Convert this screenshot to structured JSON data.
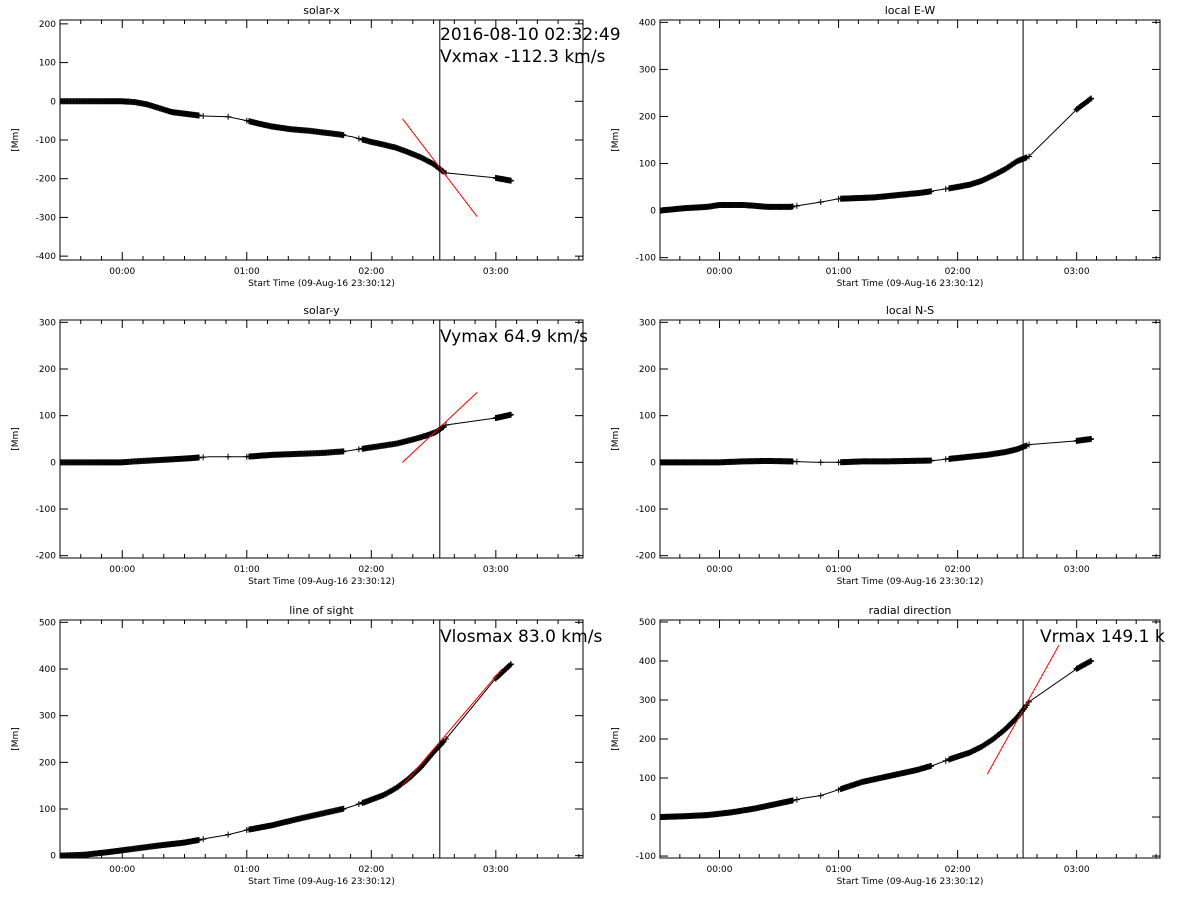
{
  "header": {
    "timestamp": "2016-08-10 02:32:49"
  },
  "chart_data": [
    {
      "type": "scatter",
      "title": "solar-x",
      "xlabel": "Start Time (09-Aug-16 23:30:12)",
      "ylabel": "[Mm]",
      "xlim": [
        -0.5,
        3.7
      ],
      "ylim": [
        -410,
        210
      ],
      "yticks": [
        200,
        100,
        0,
        -100,
        -200,
        -300,
        -400
      ],
      "yticklabels": [
        "200",
        "100",
        "0",
        "-100",
        "-200",
        "-300",
        "-400"
      ],
      "xticks": [
        0,
        1,
        2,
        3
      ],
      "xticklabels": [
        "00:00",
        "01:00",
        "02:00",
        "03:00"
      ],
      "annotation": "Vxmax -112.3 km/s",
      "event_time": 2.55,
      "trend": [
        [
          -0.5,
          0
        ],
        [
          -0.4,
          0
        ],
        [
          -0.2,
          0
        ],
        [
          0,
          0
        ],
        [
          0.1,
          -2
        ],
        [
          0.2,
          -8
        ],
        [
          0.3,
          -18
        ],
        [
          0.4,
          -28
        ],
        [
          0.5,
          -32
        ],
        [
          0.65,
          -38
        ],
        [
          0.85,
          -40
        ],
        [
          1.0,
          -50
        ],
        [
          1.1,
          -58
        ],
        [
          1.2,
          -65
        ],
        [
          1.35,
          -72
        ],
        [
          1.5,
          -76
        ],
        [
          1.6,
          -80
        ],
        [
          1.75,
          -86
        ],
        [
          1.85,
          -92
        ],
        [
          2.0,
          -105
        ],
        [
          2.1,
          -112
        ],
        [
          2.2,
          -120
        ],
        [
          2.3,
          -132
        ],
        [
          2.4,
          -145
        ],
        [
          2.5,
          -162
        ],
        [
          2.57,
          -180
        ],
        [
          2.6,
          -185
        ],
        [
          3.0,
          -198
        ],
        [
          3.12,
          -205
        ]
      ],
      "fit": [
        [
          2.25,
          -45
        ],
        [
          2.85,
          -298
        ]
      ],
      "line_color": "#000000",
      "fit_color": "#ff0000"
    },
    {
      "type": "scatter",
      "title": "local E-W",
      "xlabel": "Start Time (09-Aug-16 23:30:12)",
      "ylabel": "[Mm]",
      "xlim": [
        -0.5,
        3.7
      ],
      "ylim": [
        -105,
        405
      ],
      "yticks": [
        400,
        300,
        200,
        100,
        0,
        -100
      ],
      "yticklabels": [
        "400",
        "300",
        "200",
        "100",
        "0",
        "-100"
      ],
      "xticks": [
        0,
        1,
        2,
        3
      ],
      "xticklabels": [
        "00:00",
        "01:00",
        "02:00",
        "03:00"
      ],
      "annotation": "",
      "event_time": 2.55,
      "trend": [
        [
          -0.5,
          0
        ],
        [
          -0.3,
          5
        ],
        [
          -0.1,
          8
        ],
        [
          0.0,
          12
        ],
        [
          0.2,
          12
        ],
        [
          0.3,
          10
        ],
        [
          0.4,
          8
        ],
        [
          0.6,
          8
        ],
        [
          0.7,
          12
        ],
        [
          0.85,
          18
        ],
        [
          1.0,
          25
        ],
        [
          1.1,
          26
        ],
        [
          1.3,
          28
        ],
        [
          1.5,
          33
        ],
        [
          1.7,
          38
        ],
        [
          1.8,
          42
        ],
        [
          1.95,
          48
        ],
        [
          2.1,
          55
        ],
        [
          2.2,
          63
        ],
        [
          2.3,
          75
        ],
        [
          2.4,
          88
        ],
        [
          2.5,
          105
        ],
        [
          2.6,
          115
        ],
        [
          3.0,
          215
        ],
        [
          3.12,
          238
        ]
      ],
      "fit": null,
      "line_color": "#000000",
      "fit_color": "#ff0000"
    },
    {
      "type": "scatter",
      "title": "solar-y",
      "xlabel": "Start Time (09-Aug-16 23:30:12)",
      "ylabel": "[Mm]",
      "xlim": [
        -0.5,
        3.7
      ],
      "ylim": [
        -205,
        305
      ],
      "yticks": [
        300,
        200,
        100,
        0,
        -100,
        -200
      ],
      "yticklabels": [
        "300",
        "200",
        "100",
        "0",
        "-100",
        "-200"
      ],
      "xticks": [
        0,
        1,
        2,
        3
      ],
      "xticklabels": [
        "00:00",
        "01:00",
        "02:00",
        "03:00"
      ],
      "annotation": "Vymax 64.9 km/s",
      "event_time": 2.55,
      "trend": [
        [
          -0.5,
          0
        ],
        [
          -0.2,
          0
        ],
        [
          0.0,
          0
        ],
        [
          0.1,
          2
        ],
        [
          0.3,
          5
        ],
        [
          0.5,
          8
        ],
        [
          0.7,
          12
        ],
        [
          1.0,
          12
        ],
        [
          1.2,
          16
        ],
        [
          1.4,
          18
        ],
        [
          1.6,
          20
        ],
        [
          1.8,
          24
        ],
        [
          1.95,
          30
        ],
        [
          2.1,
          36
        ],
        [
          2.2,
          40
        ],
        [
          2.35,
          50
        ],
        [
          2.45,
          58
        ],
        [
          2.52,
          65
        ],
        [
          2.6,
          80
        ],
        [
          3.0,
          95
        ],
        [
          3.12,
          102
        ]
      ],
      "fit": [
        [
          2.25,
          0
        ],
        [
          2.85,
          150
        ]
      ],
      "line_color": "#000000",
      "fit_color": "#ff0000"
    },
    {
      "type": "scatter",
      "title": "local N-S",
      "xlabel": "Start Time (09-Aug-16 23:30:12)",
      "ylabel": "[Mm]",
      "xlim": [
        -0.5,
        3.7
      ],
      "ylim": [
        -205,
        305
      ],
      "yticks": [
        300,
        200,
        100,
        0,
        -100,
        -200
      ],
      "yticklabels": [
        "300",
        "200",
        "100",
        "0",
        "-100",
        "-200"
      ],
      "xticks": [
        0,
        1,
        2,
        3
      ],
      "xticklabels": [
        "00:00",
        "01:00",
        "02:00",
        "03:00"
      ],
      "annotation": "",
      "event_time": 2.55,
      "trend": [
        [
          -0.5,
          0
        ],
        [
          -0.2,
          0
        ],
        [
          0.0,
          0
        ],
        [
          0.2,
          2
        ],
        [
          0.4,
          3
        ],
        [
          0.6,
          2
        ],
        [
          0.8,
          0
        ],
        [
          1.0,
          0
        ],
        [
          1.2,
          2
        ],
        [
          1.4,
          2
        ],
        [
          1.6,
          3
        ],
        [
          1.8,
          4
        ],
        [
          1.95,
          8
        ],
        [
          2.1,
          12
        ],
        [
          2.25,
          16
        ],
        [
          2.4,
          22
        ],
        [
          2.5,
          28
        ],
        [
          2.6,
          38
        ],
        [
          3.0,
          46
        ],
        [
          3.12,
          50
        ]
      ],
      "fit": null,
      "line_color": "#000000",
      "fit_color": "#ff0000"
    },
    {
      "type": "scatter",
      "title": "line of sight",
      "xlabel": "Start Time (09-Aug-16 23:30:12)",
      "ylabel": "[Mm]",
      "xlim": [
        -0.5,
        3.7
      ],
      "ylim": [
        -5,
        505
      ],
      "yticks": [
        500,
        400,
        300,
        200,
        100,
        0
      ],
      "yticklabels": [
        "500",
        "400",
        "300",
        "200",
        "100",
        "0"
      ],
      "xticks": [
        0,
        1,
        2,
        3
      ],
      "xticklabels": [
        "00:00",
        "01:00",
        "02:00",
        "03:00"
      ],
      "annotation": "Vlosmax 83.0 km/s",
      "event_time": 2.55,
      "trend": [
        [
          -0.5,
          0
        ],
        [
          -0.3,
          2
        ],
        [
          -0.1,
          8
        ],
        [
          0.1,
          15
        ],
        [
          0.3,
          22
        ],
        [
          0.5,
          28
        ],
        [
          0.7,
          38
        ],
        [
          0.85,
          45
        ],
        [
          1.0,
          55
        ],
        [
          1.2,
          65
        ],
        [
          1.4,
          78
        ],
        [
          1.6,
          90
        ],
        [
          1.8,
          102
        ],
        [
          1.95,
          115
        ],
        [
          2.1,
          130
        ],
        [
          2.2,
          145
        ],
        [
          2.3,
          165
        ],
        [
          2.4,
          190
        ],
        [
          2.5,
          222
        ],
        [
          2.6,
          250
        ],
        [
          3.0,
          380
        ],
        [
          3.12,
          410
        ]
      ],
      "fit": [
        [
          2.25,
          150
        ],
        [
          3.05,
          400
        ]
      ],
      "line_color": "#000000",
      "fit_color": "#ff0000"
    },
    {
      "type": "scatter",
      "title": "radial direction",
      "xlabel": "Start Time (09-Aug-16 23:30:12)",
      "ylabel": "[Mm]",
      "xlim": [
        -0.5,
        3.7
      ],
      "ylim": [
        -105,
        505
      ],
      "yticks": [
        500,
        400,
        300,
        200,
        100,
        0,
        -100
      ],
      "yticklabels": [
        "500",
        "400",
        "300",
        "200",
        "100",
        "0",
        "-100"
      ],
      "xticks": [
        0,
        1,
        2,
        3
      ],
      "xticklabels": [
        "00:00",
        "01:00",
        "02:00",
        "03:00"
      ],
      "annotation": "Vrmax 149.1 k",
      "event_time": 2.55,
      "trend": [
        [
          -0.5,
          0
        ],
        [
          -0.3,
          2
        ],
        [
          -0.1,
          5
        ],
        [
          0.1,
          12
        ],
        [
          0.3,
          22
        ],
        [
          0.5,
          35
        ],
        [
          0.7,
          48
        ],
        [
          0.85,
          55
        ],
        [
          1.0,
          70
        ],
        [
          1.1,
          80
        ],
        [
          1.2,
          90
        ],
        [
          1.35,
          100
        ],
        [
          1.5,
          110
        ],
        [
          1.65,
          120
        ],
        [
          1.8,
          133
        ],
        [
          1.95,
          150
        ],
        [
          2.1,
          165
        ],
        [
          2.2,
          180
        ],
        [
          2.3,
          200
        ],
        [
          2.4,
          225
        ],
        [
          2.5,
          255
        ],
        [
          2.6,
          295
        ],
        [
          3.0,
          380
        ],
        [
          3.12,
          400
        ]
      ],
      "fit": [
        [
          2.25,
          110
        ],
        [
          2.85,
          440
        ]
      ],
      "line_color": "#000000",
      "fit_color": "#ff0000"
    }
  ]
}
